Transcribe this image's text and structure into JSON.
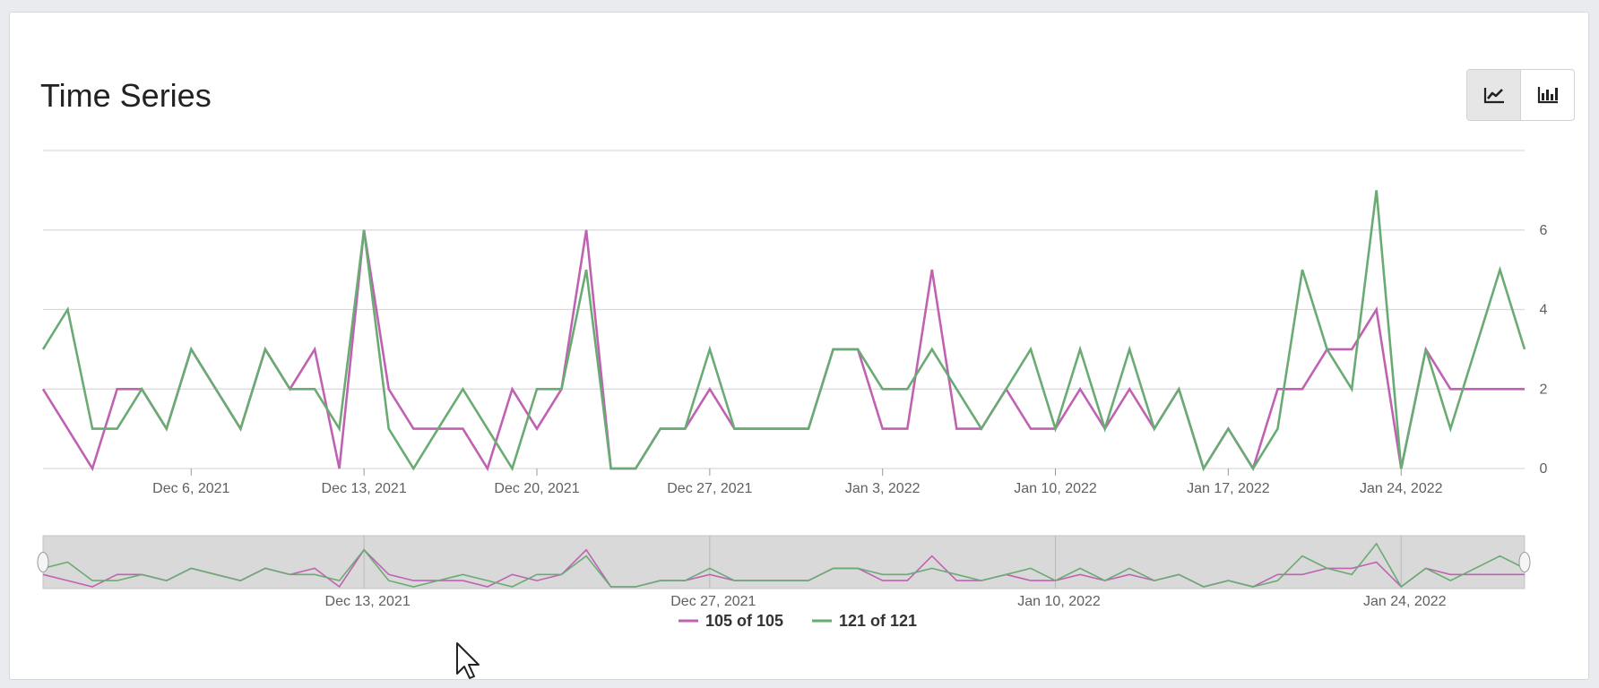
{
  "header": {
    "title": "Time Series"
  },
  "toolbar": {
    "buttons": [
      {
        "icon": "line-chart-icon",
        "active": true
      },
      {
        "icon": "bar-chart-icon",
        "active": false
      }
    ]
  },
  "colors": {
    "series1": "#c062b2",
    "series2": "#6aab74",
    "grid": "#d9d9d9",
    "navigator_bg": "#d9d9d9"
  },
  "chart_data": {
    "type": "line",
    "title": "Time Series",
    "x_start": "2021-11-30",
    "x_step_days": 1,
    "x_ticks": [
      "Dec 6, 2021",
      "Dec 13, 2021",
      "Dec 20, 2021",
      "Dec 27, 2021",
      "Jan 3, 2022",
      "Jan 10, 2022",
      "Jan 17, 2022",
      "Jan 24, 2022"
    ],
    "x_tick_dates": [
      "2021-12-06",
      "2021-12-13",
      "2021-12-20",
      "2021-12-27",
      "2022-01-03",
      "2022-01-10",
      "2022-01-17",
      "2022-01-24"
    ],
    "y_ticks": [
      0,
      2,
      4,
      6
    ],
    "ylim": [
      0,
      8
    ],
    "grid": true,
    "y_axis_side": "right",
    "legend_position": "bottom-center",
    "navigator": {
      "x_ticks": [
        "Dec 13, 2021",
        "Dec 27, 2021",
        "Jan 10, 2022",
        "Jan 24, 2022"
      ],
      "x_tick_dates": [
        "2021-12-13",
        "2021-12-27",
        "2022-01-10",
        "2022-01-24"
      ]
    },
    "series": [
      {
        "name": "105 of 105",
        "values": [
          2,
          1,
          0,
          2,
          2,
          1,
          3,
          2,
          1,
          3,
          2,
          3,
          0,
          6,
          2,
          1,
          1,
          1,
          0,
          2,
          1,
          2,
          6,
          0,
          0,
          1,
          1,
          2,
          1,
          1,
          1,
          1,
          3,
          3,
          1,
          1,
          5,
          1,
          1,
          2,
          1,
          1,
          2,
          1,
          2,
          1,
          2,
          0,
          1,
          0,
          2,
          2,
          3,
          3,
          4,
          0,
          3,
          2,
          2,
          2,
          2
        ]
      },
      {
        "name": "121 of 121",
        "values": [
          3,
          4,
          1,
          1,
          2,
          1,
          3,
          2,
          1,
          3,
          2,
          2,
          1,
          6,
          1,
          0,
          1,
          2,
          1,
          0,
          2,
          2,
          5,
          0,
          0,
          1,
          1,
          3,
          1,
          1,
          1,
          1,
          3,
          3,
          2,
          2,
          3,
          2,
          1,
          2,
          3,
          1,
          3,
          1,
          3,
          1,
          2,
          0,
          1,
          0,
          1,
          5,
          3,
          2,
          7,
          0,
          3,
          1,
          3,
          5,
          3
        ]
      }
    ]
  }
}
